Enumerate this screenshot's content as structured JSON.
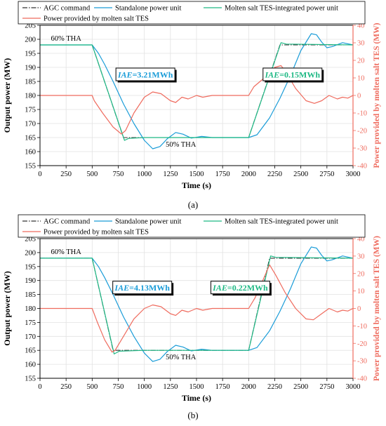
{
  "chart_data": [
    {
      "type": "line",
      "panel_label": "(a)",
      "xlabel": "Time (s)",
      "ylabel": "Output power (MW)",
      "y2label": "Power provided by molten salt TES (MW)",
      "xlim": [
        0,
        3000
      ],
      "ylim": [
        155,
        205
      ],
      "y2lim": [
        -40,
        40
      ],
      "x_ticks": [
        0,
        250,
        500,
        750,
        1000,
        1250,
        1500,
        1750,
        2000,
        2250,
        2500,
        2750,
        3000
      ],
      "y_ticks": [
        155,
        160,
        165,
        170,
        175,
        180,
        185,
        190,
        195,
        200,
        205
      ],
      "y2_ticks": [
        -40,
        -30,
        -20,
        -10,
        0,
        10,
        20,
        30,
        40
      ],
      "grid": true,
      "legend_position": "top",
      "annotations": [
        {
          "text": "60% THA",
          "x": 250,
          "y": 199.5,
          "style": "plain"
        },
        {
          "text": "50% THA",
          "x": 1350,
          "y": 161.8,
          "style": "plain"
        },
        {
          "iae_prefix": "IAE",
          "value": "=3.21MWh",
          "x": 1010,
          "y": 187.5,
          "color": "#1a9cd8",
          "style": "box"
        },
        {
          "iae_prefix": "IAE",
          "value": "=0.15MWh",
          "x": 2420,
          "y": 187.5,
          "color": "#1fb985",
          "style": "box"
        }
      ],
      "series": [
        {
          "name": "AGC command",
          "color": "#333333",
          "dash": "dashdot",
          "axis": "left",
          "points": [
            [
              0,
              198
            ],
            [
              500,
              198
            ],
            [
              800,
              165
            ],
            [
              2000,
              165
            ],
            [
              2300,
              198
            ],
            [
              3000,
              198
            ]
          ]
        },
        {
          "name": "Standalone power unit",
          "color": "#1a9cd8",
          "dash": "solid",
          "axis": "left",
          "points": [
            [
              0,
              198
            ],
            [
              500,
              198
            ],
            [
              560,
              195
            ],
            [
              620,
              191
            ],
            [
              700,
              185
            ],
            [
              800,
              177
            ],
            [
              900,
              170
            ],
            [
              1000,
              164
            ],
            [
              1080,
              161
            ],
            [
              1150,
              161.8
            ],
            [
              1220,
              164.6
            ],
            [
              1300,
              166.8
            ],
            [
              1370,
              166.2
            ],
            [
              1450,
              164.8
            ],
            [
              1550,
              165.4
            ],
            [
              1650,
              165
            ],
            [
              2000,
              165
            ],
            [
              2080,
              166
            ],
            [
              2200,
              172
            ],
            [
              2300,
              179
            ],
            [
              2400,
              187
            ],
            [
              2500,
              196
            ],
            [
              2600,
              202
            ],
            [
              2650,
              201.6
            ],
            [
              2700,
              199
            ],
            [
              2750,
              197
            ],
            [
              2800,
              197.4
            ],
            [
              2900,
              198.8
            ],
            [
              3000,
              198
            ]
          ]
        },
        {
          "name": "Molten salt TES-integrated power unit",
          "color": "#1fb985",
          "dash": "solid",
          "axis": "left",
          "points": [
            [
              0,
              198
            ],
            [
              500,
              198
            ],
            [
              810,
              164
            ],
            [
              850,
              164.7
            ],
            [
              1000,
              165
            ],
            [
              2000,
              165
            ],
            [
              2310,
              198.8
            ],
            [
              2360,
              198.3
            ],
            [
              3000,
              198
            ]
          ]
        },
        {
          "name": "Power provided by molten salt TES",
          "color": "#ef6b5e",
          "dash": "solid",
          "axis": "right",
          "points": [
            [
              0,
              0
            ],
            [
              500,
              0
            ],
            [
              520,
              -3
            ],
            [
              600,
              -10
            ],
            [
              700,
              -18
            ],
            [
              780,
              -22
            ],
            [
              820,
              -20
            ],
            [
              900,
              -10
            ],
            [
              1000,
              -1
            ],
            [
              1080,
              2
            ],
            [
              1160,
              1
            ],
            [
              1250,
              -3
            ],
            [
              1300,
              -4
            ],
            [
              1360,
              -1
            ],
            [
              1420,
              -2
            ],
            [
              1500,
              0
            ],
            [
              1560,
              -1
            ],
            [
              1650,
              0
            ],
            [
              2000,
              0
            ],
            [
              2050,
              5
            ],
            [
              2150,
              10
            ],
            [
              2250,
              16
            ],
            [
              2310,
              17
            ],
            [
              2350,
              14
            ],
            [
              2450,
              4
            ],
            [
              2550,
              -3
            ],
            [
              2630,
              -4.5
            ],
            [
              2700,
              -3
            ],
            [
              2770,
              0
            ],
            [
              2850,
              -2
            ],
            [
              2900,
              -1
            ],
            [
              2950,
              -1.5
            ],
            [
              3000,
              0
            ]
          ]
        }
      ]
    },
    {
      "type": "line",
      "panel_label": "(b)",
      "xlabel": "Time (s)",
      "ylabel": "Output power (MW)",
      "y2label": "Power provided by molten salt TES (MW)",
      "xlim": [
        0,
        3000
      ],
      "ylim": [
        155,
        205
      ],
      "y2lim": [
        -40,
        40
      ],
      "x_ticks": [
        0,
        250,
        500,
        750,
        1000,
        1250,
        1500,
        1750,
        2000,
        2250,
        2500,
        2750,
        3000
      ],
      "y_ticks": [
        155,
        160,
        165,
        170,
        175,
        180,
        185,
        190,
        195,
        200,
        205
      ],
      "y2_ticks": [
        -40,
        -30,
        -20,
        -10,
        0,
        10,
        20,
        30,
        40
      ],
      "grid": true,
      "legend_position": "top",
      "annotations": [
        {
          "text": "60% THA",
          "x": 250,
          "y": 199.5,
          "style": "plain"
        },
        {
          "text": "50% THA",
          "x": 1350,
          "y": 161.8,
          "style": "plain"
        },
        {
          "iae_prefix": "IAE",
          "value": "=4.13MWh",
          "x": 980,
          "y": 187.5,
          "color": "#1a9cd8",
          "style": "box"
        },
        {
          "iae_prefix": "IAE",
          "value": "=0.22MWh",
          "x": 1920,
          "y": 187.5,
          "color": "#1fb985",
          "style": "box"
        }
      ],
      "series": [
        {
          "name": "AGC command",
          "color": "#333333",
          "dash": "dashdot",
          "axis": "left",
          "points": [
            [
              0,
              198
            ],
            [
              500,
              198
            ],
            [
              700,
              165
            ],
            [
              2000,
              165
            ],
            [
              2200,
              198
            ],
            [
              3000,
              198
            ]
          ]
        },
        {
          "name": "Standalone power unit",
          "color": "#1a9cd8",
          "dash": "solid",
          "axis": "left",
          "points": [
            [
              0,
              198
            ],
            [
              500,
              198
            ],
            [
              560,
              195
            ],
            [
              620,
              191
            ],
            [
              700,
              185
            ],
            [
              800,
              177
            ],
            [
              900,
              170
            ],
            [
              1000,
              164
            ],
            [
              1080,
              161
            ],
            [
              1150,
              161.8
            ],
            [
              1220,
              164.6
            ],
            [
              1300,
              166.8
            ],
            [
              1370,
              166.2
            ],
            [
              1450,
              164.8
            ],
            [
              1550,
              165.4
            ],
            [
              1650,
              165
            ],
            [
              2000,
              165
            ],
            [
              2080,
              166
            ],
            [
              2200,
              172
            ],
            [
              2300,
              179
            ],
            [
              2400,
              187
            ],
            [
              2500,
              196
            ],
            [
              2600,
              202
            ],
            [
              2650,
              201.6
            ],
            [
              2700,
              199
            ],
            [
              2750,
              197
            ],
            [
              2800,
              197.4
            ],
            [
              2900,
              198.8
            ],
            [
              3000,
              198
            ]
          ]
        },
        {
          "name": "Molten salt TES-integrated power unit",
          "color": "#1fb985",
          "dash": "solid",
          "axis": "left",
          "points": [
            [
              0,
              198
            ],
            [
              500,
              198
            ],
            [
              710,
              163.7
            ],
            [
              760,
              164.7
            ],
            [
              1000,
              165
            ],
            [
              2000,
              165
            ],
            [
              2210,
              198.8
            ],
            [
              2260,
              198.3
            ],
            [
              3000,
              198
            ]
          ]
        },
        {
          "name": "Power provided by molten salt TES",
          "color": "#ef6b5e",
          "dash": "solid",
          "axis": "right",
          "points": [
            [
              0,
              0
            ],
            [
              500,
              0
            ],
            [
              550,
              -8
            ],
            [
              620,
              -18
            ],
            [
              690,
              -25
            ],
            [
              720,
              -24
            ],
            [
              800,
              -16
            ],
            [
              900,
              -6
            ],
            [
              1000,
              0
            ],
            [
              1080,
              2
            ],
            [
              1160,
              1
            ],
            [
              1250,
              -3
            ],
            [
              1300,
              -4
            ],
            [
              1360,
              -1
            ],
            [
              1420,
              -2
            ],
            [
              1500,
              0
            ],
            [
              1560,
              -1
            ],
            [
              1650,
              0
            ],
            [
              2000,
              0
            ],
            [
              2060,
              6
            ],
            [
              2150,
              18
            ],
            [
              2200,
              25
            ],
            [
              2260,
              19
            ],
            [
              2350,
              9
            ],
            [
              2450,
              0
            ],
            [
              2550,
              -6
            ],
            [
              2620,
              -6.5
            ],
            [
              2700,
              -3
            ],
            [
              2770,
              0
            ],
            [
              2850,
              -2
            ],
            [
              2900,
              -1
            ],
            [
              2950,
              -1.5
            ],
            [
              3000,
              0
            ]
          ]
        }
      ]
    }
  ]
}
